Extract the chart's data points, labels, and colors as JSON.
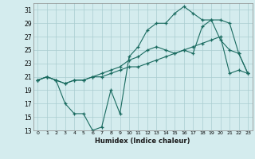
{
  "xlabel": "Humidex (Indice chaleur)",
  "bg_color": "#d4ecee",
  "grid_color": "#aacdd0",
  "line_color": "#1a6b60",
  "xlim": [
    -0.5,
    23.5
  ],
  "ylim": [
    13,
    32
  ],
  "xticks": [
    0,
    1,
    2,
    3,
    4,
    5,
    6,
    7,
    8,
    9,
    10,
    11,
    12,
    13,
    14,
    15,
    16,
    17,
    18,
    19,
    20,
    21,
    22,
    23
  ],
  "yticks": [
    13,
    15,
    17,
    19,
    21,
    23,
    25,
    27,
    29,
    31
  ],
  "line1_x": [
    0,
    1,
    2,
    3,
    4,
    5,
    6,
    7,
    8,
    9,
    10,
    11,
    12,
    13,
    14,
    15,
    16,
    17,
    18,
    19,
    20,
    21,
    22,
    23
  ],
  "line1_y": [
    20.5,
    21.0,
    20.5,
    20.0,
    20.5,
    20.5,
    21.0,
    21.0,
    21.5,
    22.0,
    22.5,
    22.5,
    23.0,
    23.5,
    24.0,
    24.5,
    25.0,
    25.5,
    26.0,
    26.5,
    27.0,
    21.5,
    22.0,
    21.5
  ],
  "line2_x": [
    0,
    1,
    2,
    3,
    4,
    5,
    6,
    7,
    8,
    9,
    10,
    11,
    12,
    13,
    14,
    15,
    16,
    17,
    18,
    19,
    20,
    21,
    22,
    23
  ],
  "line2_y": [
    20.5,
    21.0,
    20.5,
    17.0,
    15.5,
    15.5,
    13.0,
    13.5,
    19.0,
    15.5,
    24.0,
    25.5,
    28.0,
    29.0,
    29.0,
    30.5,
    31.5,
    30.5,
    29.5,
    29.5,
    29.5,
    29.0,
    24.5,
    21.5
  ],
  "line3_x": [
    0,
    1,
    2,
    3,
    4,
    5,
    6,
    7,
    8,
    9,
    10,
    11,
    12,
    13,
    14,
    15,
    16,
    17,
    18,
    19,
    20,
    21,
    22,
    23
  ],
  "line3_y": [
    20.5,
    21.0,
    20.5,
    20.0,
    20.5,
    20.5,
    21.0,
    21.5,
    22.0,
    22.5,
    23.5,
    24.0,
    25.0,
    25.5,
    25.0,
    24.5,
    25.0,
    24.5,
    28.5,
    29.5,
    26.5,
    25.0,
    24.5,
    21.5
  ]
}
